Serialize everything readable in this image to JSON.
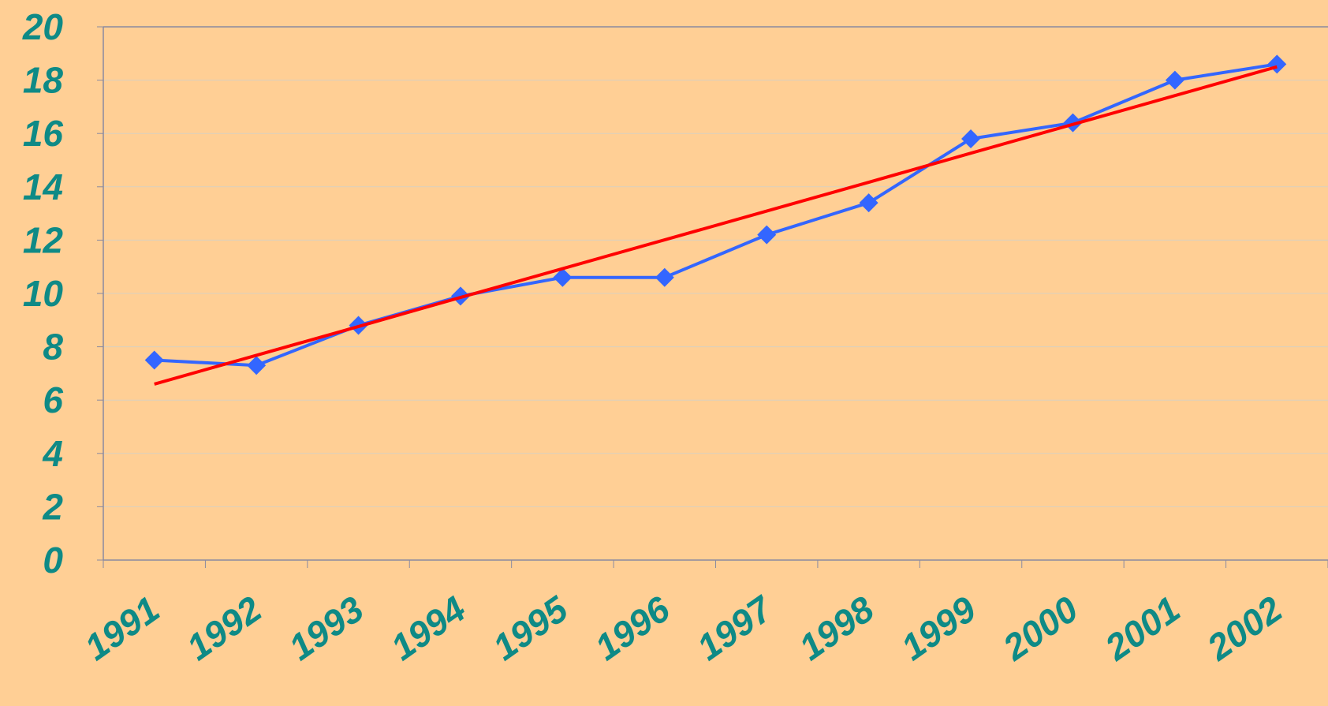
{
  "chart_data": {
    "type": "line",
    "categories": [
      "1991",
      "1992",
      "1993",
      "1994",
      "1995",
      "1996",
      "1997",
      "1998",
      "1999",
      "2000",
      "2001",
      "2002"
    ],
    "series": [
      {
        "color": "#3366ff",
        "marker": "diamond",
        "values": [
          7.5,
          7.3,
          8.8,
          9.9,
          10.6,
          10.6,
          12.2,
          13.4,
          15.8,
          16.4,
          18.0,
          18.6
        ]
      },
      {
        "color": "#ff0000",
        "values": [
          6.6,
          7.68,
          8.76,
          9.85,
          10.93,
          12.01,
          13.09,
          14.17,
          15.26,
          16.34,
          17.42,
          18.5
        ]
      }
    ],
    "ylim": [
      0,
      20
    ],
    "yticks": [
      0,
      2,
      4,
      6,
      8,
      10,
      12,
      14,
      16,
      18,
      20
    ],
    "grid": true
  }
}
